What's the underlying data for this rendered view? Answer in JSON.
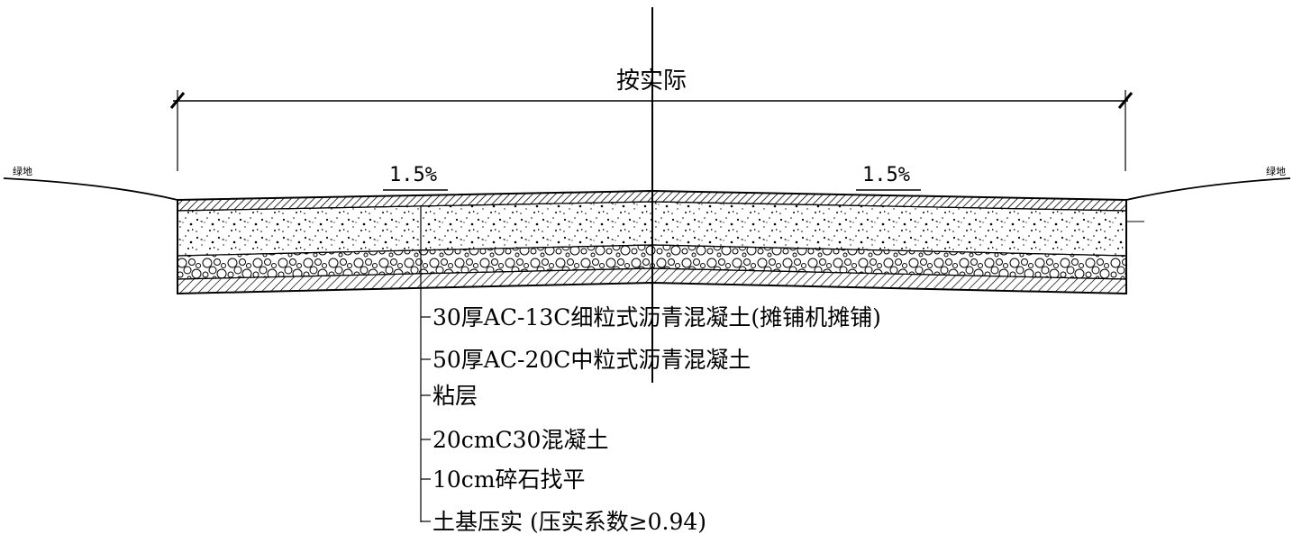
{
  "title_dimension": "按实际",
  "side_labels": {
    "left": "绿地",
    "right": "绿地"
  },
  "slopes": {
    "left": "1.5%",
    "right": "1.5%"
  },
  "layers": [
    {
      "label": "30厚AC-13C细粒式沥青混凝土(摊铺机摊铺)"
    },
    {
      "label": "50厚AC-20C中粒式沥青混凝土"
    },
    {
      "label": "粘层"
    },
    {
      "label": "20cmC30混凝土"
    },
    {
      "label": "10cm碎石找平"
    },
    {
      "label": "土基压实 (压实系数≥0.94)"
    }
  ]
}
